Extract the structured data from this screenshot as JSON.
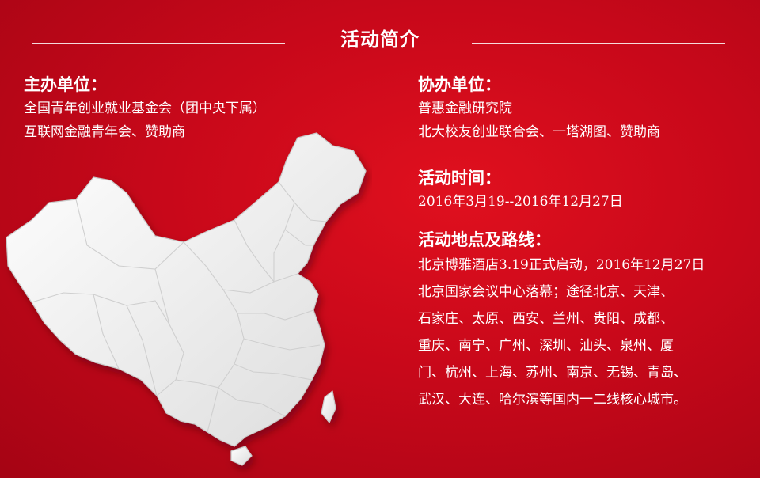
{
  "header": {
    "title": "活动简介"
  },
  "host": {
    "heading": "主办单位：",
    "lines": [
      "全国青年创业就业基金会（团中央下属）",
      "互联网金融青年会、赞助商"
    ]
  },
  "co_host": {
    "heading": "协办单位：",
    "lines": [
      "普惠金融研究院",
      "北大校友创业联合会、一塔湖图、赞助商"
    ]
  },
  "time": {
    "heading": "活动时间：",
    "value": "2016年3月19--2016年12月27日"
  },
  "route": {
    "heading": "活动地点及路线：",
    "lines": [
      "北京博雅酒店3.19正式启动，2016年12月27日",
      "北京国家会议中心落幕；途径北京、天津、",
      "石家庄、太原、西安、兰州、贵阳、成都、",
      "重庆、南宁、广州、深圳、汕头、泉州、厦",
      "门、杭州、上海、苏州、南京、无锡、青岛、",
      "武汉、大连、哈尔滨等国内一二线核心城市。"
    ]
  },
  "colors": {
    "background": "#c8081a",
    "text": "#ffffff",
    "map_fill": "#f2f2f2",
    "map_border": "#d6d6d6"
  },
  "icons": {
    "map": "china-map-illustration"
  }
}
